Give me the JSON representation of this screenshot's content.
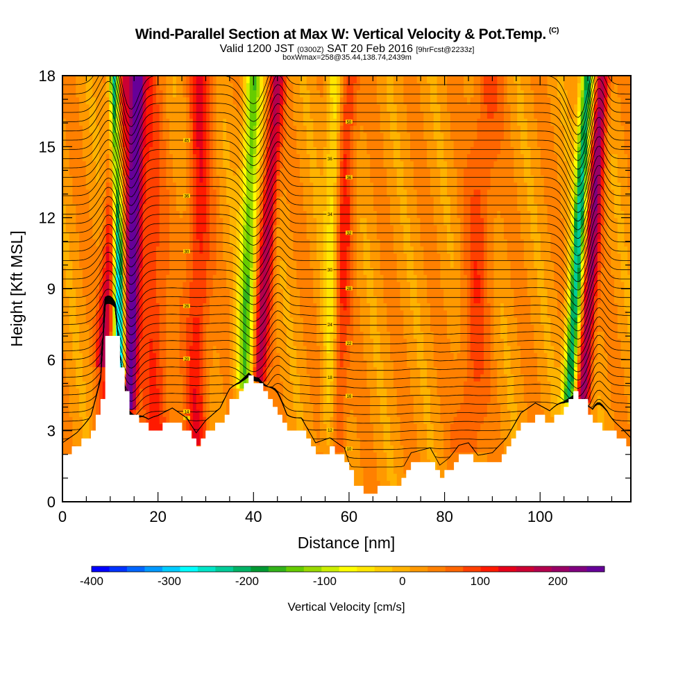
{
  "header": {
    "title": "Wind-Parallel Section at Max W: Vertical Velocity & Pot.Temp.",
    "title_mark": "(C)",
    "subtitle_main_a": "Valid 1200 JST",
    "subtitle_small_a": "(0300Z)",
    "subtitle_main_b": "SAT 20 Feb 2016",
    "subtitle_small_b": "[9hrFcst@2233z]",
    "subtitle_line3": "boxWmax=258@35.44,138.74,2439m"
  },
  "chart_data": {
    "type": "heatmap",
    "title": "Wind-Parallel Section at Max W: Vertical Velocity & Pot.Temp.",
    "xlabel": "Distance [nm]",
    "ylabel": "Height [Kft MSL]",
    "xlim": [
      0,
      119
    ],
    "ylim": [
      0,
      18
    ],
    "x_ticks": [
      0,
      20,
      40,
      60,
      80,
      100
    ],
    "y_ticks": [
      0,
      3,
      6,
      9,
      12,
      15,
      18
    ],
    "colorbar": {
      "label": "Vertical Velocity [cm/s]",
      "tick_labels": [
        "-400",
        "-300",
        "-200",
        "-100",
        "0",
        "100",
        "200"
      ],
      "tick_values": [
        -400,
        -300,
        -200,
        -100,
        0,
        100,
        200
      ],
      "range": [
        -400,
        260
      ],
      "colors": [
        "#0000ff",
        "#0033ff",
        "#0066ff",
        "#0099ff",
        "#00ccff",
        "#00ffff",
        "#00e5c8",
        "#00cc99",
        "#00b366",
        "#009933",
        "#33b31a",
        "#66cc00",
        "#99d900",
        "#ccee00",
        "#ffff00",
        "#ffe600",
        "#ffcc00",
        "#ffb300",
        "#ff9900",
        "#ff8000",
        "#ff6600",
        "#ff4000",
        "#ff1a00",
        "#e6001a",
        "#cc0033",
        "#b3004d",
        "#990066",
        "#800080",
        "#660099"
      ]
    },
    "terrain_kft": {
      "x": [
        0,
        3,
        6,
        8,
        9,
        11,
        12,
        13,
        14,
        16,
        18,
        20,
        23,
        26,
        28,
        30,
        33,
        35,
        37,
        39,
        41,
        43,
        45,
        47,
        50,
        53,
        56,
        59,
        61,
        63,
        66,
        69,
        71,
        73,
        75,
        77,
        79,
        81,
        83,
        85,
        87,
        90,
        93,
        96,
        99,
        102,
        105,
        107,
        109,
        111,
        114,
        117,
        119
      ],
      "y": [
        2.0,
        2.4,
        3.0,
        4.2,
        7.1,
        7.1,
        5.5,
        4.7,
        3.8,
        3.4,
        3.0,
        3.1,
        3.4,
        3.0,
        2.4,
        2.9,
        3.4,
        4.2,
        4.6,
        5.2,
        5.0,
        4.3,
        3.7,
        3.0,
        3.0,
        2.0,
        2.2,
        1.8,
        0.6,
        0.4,
        0.5,
        0.5,
        0.9,
        1.6,
        1.7,
        1.8,
        1.1,
        1.4,
        1.9,
        2.0,
        1.5,
        1.6,
        2.2,
        3.2,
        3.6,
        3.3,
        3.9,
        4.5,
        4.3,
        3.2,
        3.1,
        2.6,
        2.2
      ]
    },
    "updraft_bands": [
      {
        "x_top": 12.5,
        "x_bottom": 8.5,
        "peak": 150,
        "width": 1.6
      },
      {
        "x_top": 15.5,
        "x_bottom": 14.0,
        "peak": 250,
        "width": 1.4
      },
      {
        "x_top": 17,
        "x_bottom": 20,
        "peak": 80,
        "width": 3.0
      },
      {
        "x_top": 29,
        "x_bottom": 28,
        "peak": 90,
        "width": 2.5
      },
      {
        "x_top": 45,
        "x_bottom": 41,
        "peak": 150,
        "width": 1.6
      },
      {
        "x_top": 60,
        "x_bottom": 57,
        "peak": 90,
        "width": 2.0
      },
      {
        "x_top": 113,
        "x_bottom": 109,
        "peak": 180,
        "width": 1.5
      },
      {
        "x_top": 89,
        "x_bottom": 85,
        "peak": 60,
        "width": 3.0
      }
    ],
    "downdraft_bands": [
      {
        "x_top": 11,
        "x_bottom": 12,
        "peak": -330,
        "width": 1.1
      },
      {
        "x_top": 40,
        "x_bottom": 38,
        "peak": -170,
        "width": 1.7
      },
      {
        "x_top": 57,
        "x_bottom": 56,
        "peak": -90,
        "width": 1.6
      },
      {
        "x_top": 110,
        "x_bottom": 106,
        "peak": -250,
        "width": 1.4
      }
    ],
    "isentrope_labels": [
      "50",
      "45",
      "36",
      "36",
      "36",
      "34",
      "32",
      "30",
      "30",
      "28",
      "26",
      "24",
      "22",
      "20",
      "18",
      "16",
      "14",
      "12",
      "10",
      "8"
    ],
    "isentrope_count": 44,
    "grid": false,
    "legend": "colorbar-bottom"
  }
}
